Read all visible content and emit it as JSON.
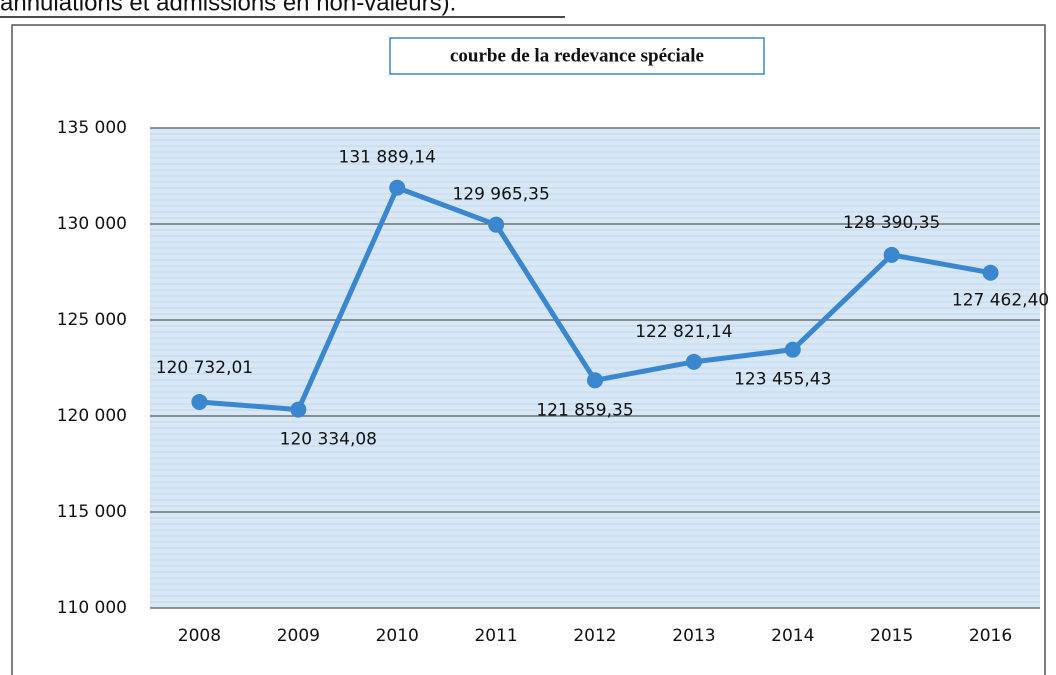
{
  "heading": "annulations et admissions en non-valeurs).",
  "chart_data": {
    "type": "line",
    "title": "courbe de la redevance spéciale",
    "categories": [
      "2008",
      "2009",
      "2010",
      "2011",
      "2012",
      "2013",
      "2014",
      "2015",
      "2016"
    ],
    "values": [
      120732.01,
      120334.08,
      131889.14,
      129965.35,
      121859.35,
      122821.14,
      123455.43,
      128390.35,
      127462.4
    ],
    "value_labels": [
      "120 732,01",
      "120 334,08",
      "131 889,14",
      "129 965,35",
      "121 859,35",
      "122 821,14",
      "123 455,43",
      "128 390,35",
      "127 462,40"
    ],
    "color": "#3a87cf",
    "ylim": [
      110000,
      135000
    ],
    "yticks": [
      {
        "value": 110000,
        "label": "110 000"
      },
      {
        "value": 115000,
        "label": "115 000"
      },
      {
        "value": 120000,
        "label": "120 000"
      },
      {
        "value": 125000,
        "label": "125 000"
      },
      {
        "value": 130000,
        "label": "130 000"
      },
      {
        "value": 135000,
        "label": "135 000"
      }
    ],
    "grid": true
  }
}
